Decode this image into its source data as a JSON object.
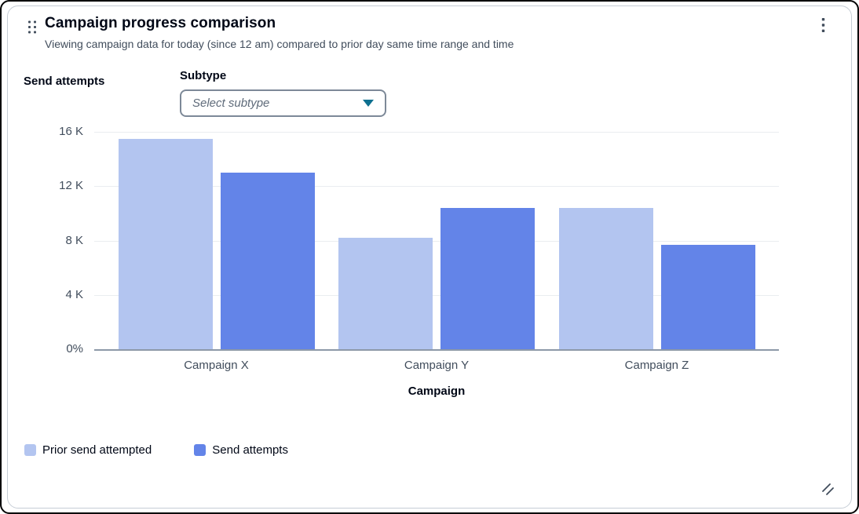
{
  "card": {
    "title": "Campaign progress comparison",
    "subtitle": "Viewing campaign data for today (since 12 am) compared to prior day same time range and time"
  },
  "controls": {
    "y_axis_title": "Send attempts",
    "subtype_label": "Subtype",
    "subtype_placeholder": "Select subtype"
  },
  "chart_data": {
    "type": "bar",
    "title": "Campaign progress comparison",
    "categories": [
      "Campaign X",
      "Campaign Y",
      "Campaign Z"
    ],
    "series": [
      {
        "name": "Prior send attempted",
        "color": "#b3c5f0",
        "values": [
          15500,
          8200,
          10400
        ]
      },
      {
        "name": "Send attempts",
        "color": "#6384e8",
        "values": [
          13000,
          10400,
          7700
        ]
      }
    ],
    "xlabel": "Campaign",
    "ylabel": "Send attempts",
    "ylim": [
      0,
      16000
    ],
    "yticks": [
      "16 K",
      "12 K",
      "8 K",
      "4 K",
      "0%"
    ],
    "grid": true,
    "legend_position": "bottom"
  },
  "colors": {
    "prior_series": "#b3c5f0",
    "current_series": "#6384e8",
    "caret": "#0e7090",
    "text_primary": "#000716",
    "text_secondary": "#414d5c"
  }
}
